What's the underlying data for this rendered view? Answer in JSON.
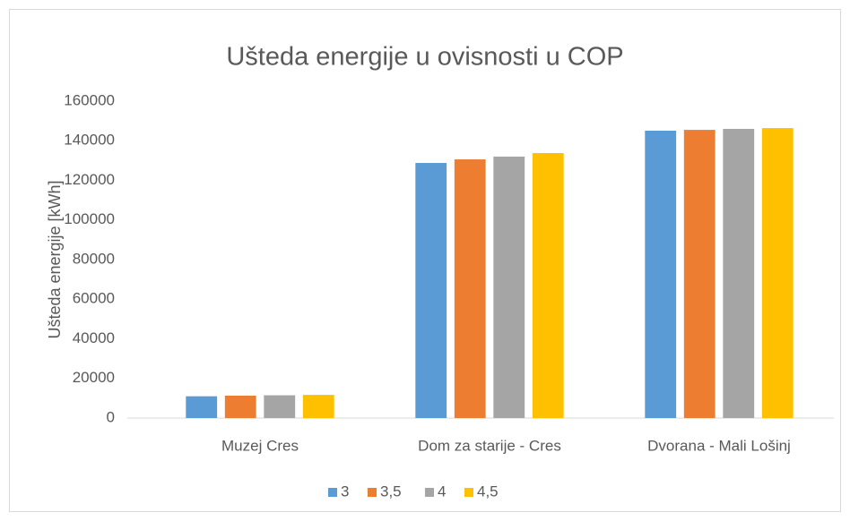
{
  "chart_data": {
    "type": "bar",
    "title": "Ušteda energije u ovisnosti u COP",
    "y_label": "Ušteda energije [kWh]",
    "categories": [
      "Muzej Cres",
      "Dom za starije - Cres",
      "Dvorana - Mali Lošinj"
    ],
    "series": [
      {
        "name": "3",
        "color": "#5b9bd5",
        "values": [
          11000,
          128800,
          145100
        ]
      },
      {
        "name": "3,5",
        "color": "#ed7d31",
        "values": [
          11300,
          130600,
          145500
        ]
      },
      {
        "name": "4",
        "color": "#a5a5a5",
        "values": [
          11500,
          132000,
          146000
        ]
      },
      {
        "name": "4,5",
        "color": "#ffc000",
        "values": [
          11700,
          133800,
          146400
        ]
      }
    ],
    "ylim": [
      0,
      160000
    ],
    "yticks": [
      0,
      20000,
      40000,
      60000,
      80000,
      100000,
      120000,
      140000,
      160000
    ],
    "grid": false,
    "legend": "bottom"
  }
}
